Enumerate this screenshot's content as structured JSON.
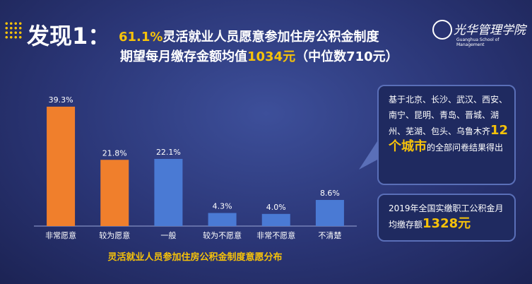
{
  "header": {
    "title": "发现1：",
    "line1": {
      "highlight": "61.1%",
      "text": "灵活就业人员愿意参加住房公积金制度"
    },
    "line2": {
      "text": "期望每月缴存金额均值",
      "highlight": "1034元",
      "note": "（中位数710元）"
    }
  },
  "logo": {
    "name": "光华管理学院",
    "subtitle": "Guanghua School of Management"
  },
  "callouts": [
    {
      "text": "基于北京、长沙、武汉、西安、南宁、昆明、青岛、晋城、湖州、芜湖、包头、乌鲁木齐",
      "highlight": "12个城市",
      "tail": "的全部问卷结果得出"
    },
    {
      "text": "2019年全国实缴职工公积金月均缴存额",
      "highlight": "1328元"
    }
  ],
  "chart_data": {
    "type": "bar",
    "title": "灵活就业人员参加住房公积金制度意愿分布",
    "categories": [
      "非常愿意",
      "较为愿意",
      "一般",
      "较为不愿意",
      "非常不愿意",
      "不清楚"
    ],
    "values": [
      39.3,
      21.8,
      22.1,
      4.3,
      4.0,
      8.6
    ],
    "value_labels": [
      "39.3%",
      "21.8%",
      "22.1%",
      "4.3%",
      "4.0%",
      "8.6%"
    ],
    "colors": [
      "#f07f2c",
      "#f07f2c",
      "#4a7ad4",
      "#4a7ad4",
      "#4a7ad4",
      "#4a7ad4"
    ]
  }
}
